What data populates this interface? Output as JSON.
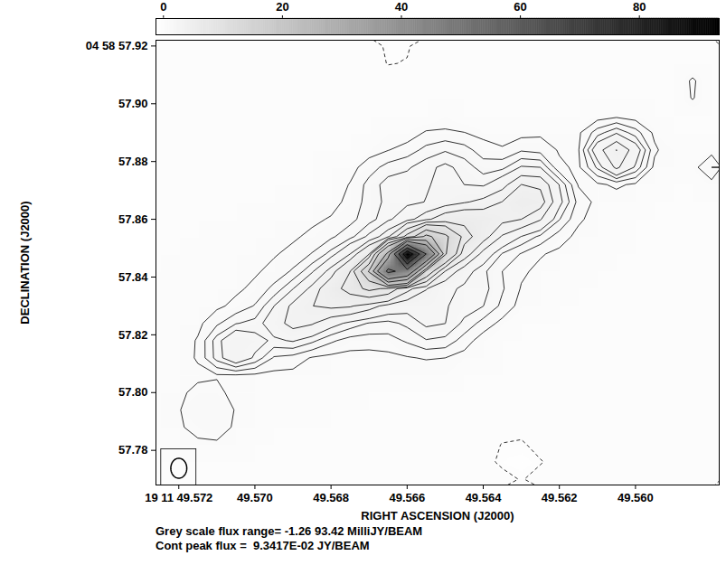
{
  "chart_data": {
    "type": "contour",
    "x_label": "RIGHT ASCENSION (J2000)",
    "y_label": "DECLINATION (J2000)",
    "xlim": [
      49.5726,
      49.5578
    ],
    "ylim": [
      57.768,
      57.922
    ],
    "xticks": [
      {
        "value": 49.572,
        "label": "19 11 49.572"
      },
      {
        "value": 49.57,
        "label": "49.570"
      },
      49.568,
      49.566,
      49.564,
      49.562,
      {
        "value": 49.56,
        "label": "49.560"
      }
    ],
    "yticks": [
      {
        "value": 57.92,
        "label": "04 58 57.92"
      },
      {
        "value": 57.9,
        "label": "57.90"
      },
      57.88,
      57.86,
      57.84,
      57.82,
      {
        "value": 57.8,
        "label": "57.80"
      },
      57.78
    ],
    "captions": [
      "Grey scale flux range= -1.26 93.42 MilliJY/BEAM",
      "Cont peak flux =  9.3417E-02 JY/BEAM"
    ],
    "colorbar": {
      "range": [
        -1.26,
        93.42
      ],
      "ticks": [
        0,
        20,
        40,
        60,
        80
      ]
    },
    "contour_levels": [
      0.5,
      1,
      1.5,
      2,
      3,
      4,
      6,
      8,
      12,
      16,
      24,
      32,
      48,
      64,
      80
    ],
    "negative_contour_levels": [
      -0.5
    ],
    "beam": {
      "ra": 49.572,
      "dec": 57.7738,
      "width": 0.00042,
      "height": 0.0069
    },
    "cells": {
      "ra": [
        49.5725,
        49.572,
        49.5715,
        49.571,
        49.5705,
        49.57,
        49.5695,
        49.569,
        49.5685,
        49.568,
        49.5675,
        49.567,
        49.5665,
        49.566,
        49.5655,
        49.565,
        49.5645,
        49.564,
        49.5635,
        49.563,
        49.5625,
        49.562,
        49.5615,
        49.561,
        49.5605,
        49.56,
        49.5595,
        49.559,
        49.5585,
        49.558
      ],
      "dec": [
        57.92,
        57.914,
        57.908,
        57.902,
        57.896,
        57.89,
        57.884,
        57.878,
        57.872,
        57.866,
        57.86,
        57.854,
        57.848,
        57.842,
        57.836,
        57.83,
        57.824,
        57.818,
        57.812,
        57.806,
        57.8,
        57.794,
        57.788,
        57.782,
        57.776,
        57.77
      ],
      "values": [
        [
          0,
          0,
          0,
          0,
          0,
          0,
          0,
          0,
          0,
          0,
          0,
          0,
          -0.7,
          -0.6,
          0,
          0,
          0,
          0,
          0,
          0,
          0,
          0,
          0,
          0,
          0,
          0,
          0,
          0,
          0,
          0
        ],
        [
          0,
          0,
          0,
          0,
          0,
          0,
          0,
          0,
          0,
          0,
          0,
          0,
          -0.55,
          -0.45,
          0,
          0,
          0,
          0,
          0,
          0,
          0,
          0,
          0,
          0,
          0,
          0,
          0,
          0,
          0,
          0
        ],
        [
          0,
          0,
          0,
          0,
          0,
          0,
          0,
          0,
          0,
          0,
          0,
          0,
          0,
          0,
          0,
          0,
          0,
          0,
          0,
          0,
          0,
          0,
          0,
          0,
          0,
          0,
          0,
          0,
          0.6,
          0
        ],
        [
          0,
          0,
          0,
          0,
          0,
          0,
          0,
          0,
          0,
          0,
          0,
          0,
          0,
          0,
          0,
          0,
          0,
          0,
          0,
          0,
          0,
          0,
          0,
          0,
          0,
          0,
          0,
          0,
          0.55,
          0
        ],
        [
          0,
          0,
          0,
          0,
          0,
          0,
          0,
          0,
          0,
          0,
          0,
          0,
          0,
          0,
          0,
          0.1,
          0,
          0,
          0,
          0,
          0,
          0,
          0,
          0.2,
          0.3,
          0.2,
          0,
          0,
          0,
          0
        ],
        [
          0,
          0,
          0,
          0,
          0,
          0,
          0,
          0,
          0,
          0,
          0,
          0,
          0.1,
          0.2,
          0.56,
          0.61,
          0.51,
          0.34,
          0.2,
          0.32,
          0.4,
          0.34,
          0.4,
          1.26,
          1.92,
          1.23,
          0.38,
          0,
          0,
          0
        ],
        [
          0,
          0,
          0,
          0,
          0,
          0,
          0,
          0,
          0,
          0,
          0,
          0.28,
          0.48,
          0.73,
          1.16,
          1.44,
          1.21,
          0.74,
          0.58,
          0.93,
          0.8,
          0.45,
          0.45,
          2.59,
          4.03,
          2.48,
          0.6,
          0.12,
          0,
          0.3
        ],
        [
          0,
          0,
          0,
          0,
          0,
          0,
          0,
          0,
          0,
          0.1,
          0.31,
          0.76,
          1.2,
          1.41,
          1.82,
          2.15,
          1.79,
          1.25,
          1.35,
          2.07,
          2.0,
          0.6,
          0.4,
          1.6,
          3.21,
          1.89,
          0.35,
          0.1,
          0.3,
          1.0
        ],
        [
          0,
          0,
          0,
          0,
          0,
          0,
          0,
          0,
          0,
          0.2,
          0.53,
          1.18,
          1.75,
          1.82,
          1.95,
          2.16,
          2.0,
          1.89,
          2.59,
          4.01,
          3.79,
          1.97,
          0.45,
          0.4,
          0.6,
          0.4,
          0.15,
          0,
          0,
          0.3
        ],
        [
          0,
          0,
          0,
          0,
          0,
          0,
          0,
          0.12,
          0.2,
          0.3,
          0.66,
          1.21,
          1.65,
          1.84,
          2.02,
          2.47,
          2.89,
          3.29,
          4.03,
          5.21,
          4.54,
          2.22,
          0.82,
          0.35,
          0.23,
          0.14,
          0,
          0,
          0,
          0
        ],
        [
          0,
          0,
          0,
          0,
          0,
          0.1,
          0.15,
          0.24,
          0.39,
          0.55,
          0.84,
          1.29,
          1.85,
          2.59,
          3.7,
          4.88,
          5.35,
          4.96,
          4.31,
          4.0,
          3.08,
          1.53,
          0.59,
          0.29,
          0.18,
          0,
          0,
          0,
          0,
          0
        ],
        [
          0,
          0,
          0,
          0.05,
          0.1,
          0.17,
          0.28,
          0.42,
          0.62,
          0.91,
          1.32,
          2.15,
          3.76,
          8.83,
          17.26,
          12.98,
          7.1,
          4.54,
          2.88,
          1.98,
          1.37,
          0.74,
          0.35,
          0.21,
          0.12,
          0,
          0,
          0,
          0,
          0
        ],
        [
          0,
          0,
          0.06,
          0.1,
          0.18,
          0.28,
          0.45,
          0.65,
          1.03,
          1.68,
          2.99,
          5.89,
          26.06,
          93.42,
          48,
          12.45,
          4.72,
          2.6,
          1.45,
          0.96,
          0.55,
          0.37,
          0.23,
          0.14,
          0,
          0,
          0,
          0,
          0,
          0
        ],
        [
          0,
          0.05,
          0.1,
          0.17,
          0.28,
          0.43,
          0.65,
          1.08,
          1.88,
          3.39,
          5.96,
          16.42,
          51.4,
          42.54,
          10.5,
          3.97,
          2.36,
          1.61,
          1.0,
          0.59,
          0.37,
          0.23,
          0.12,
          0,
          0,
          0,
          0,
          0,
          0,
          0
        ],
        [
          0.05,
          0.08,
          0.15,
          0.24,
          0.4,
          0.62,
          1.15,
          1.97,
          3.28,
          4.99,
          6.88,
          8.58,
          7.59,
          4.4,
          3.06,
          2.21,
          1.87,
          1.69,
          1.06,
          0.46,
          0.22,
          0.13,
          0,
          0,
          0,
          0,
          0,
          0,
          0,
          0
        ],
        [
          0.07,
          0.12,
          0.2,
          0.39,
          0.64,
          1.04,
          1.99,
          3.26,
          3.98,
          4.25,
          4.13,
          3.45,
          2.62,
          2.28,
          2.28,
          2.05,
          1.77,
          1.51,
          0.87,
          0.3,
          0.08,
          0,
          0,
          0,
          0,
          0,
          0,
          0,
          0,
          0
        ],
        [
          0.09,
          0.16,
          0.36,
          0.89,
          1.46,
          1.67,
          2.47,
          3.42,
          3.11,
          2.32,
          1.82,
          1.46,
          1.34,
          1.63,
          2.14,
          2.01,
          1.37,
          0.8,
          0.34,
          0,
          0,
          0,
          0,
          0,
          0,
          0,
          0,
          0,
          0,
          0
        ],
        [
          0.11,
          0.2,
          0.55,
          1.75,
          2.81,
          2.28,
          1.87,
          2.07,
          1.64,
          1.1,
          0.78,
          0.73,
          0.78,
          1.08,
          1.46,
          1.35,
          0.76,
          0.23,
          0,
          0,
          0,
          0,
          0,
          0,
          0,
          0,
          0,
          0,
          0,
          0
        ],
        [
          0.11,
          0.2,
          0.57,
          1.7,
          2.67,
          1.88,
          0.93,
          0.79,
          0.45,
          0.35,
          0.3,
          0.3,
          0.35,
          0.45,
          0.55,
          0.5,
          0.3,
          0.08,
          0,
          0,
          0,
          0,
          0,
          0,
          0,
          0,
          0,
          0,
          0,
          0
        ],
        [
          0.11,
          0.25,
          0.35,
          0.45,
          0.45,
          0.4,
          0.35,
          0.34,
          0.32,
          0.29,
          0.25,
          0.2,
          0.15,
          0.1,
          0.1,
          0.1,
          0,
          0,
          0,
          0,
          0,
          0,
          0,
          0,
          0,
          0,
          0,
          0,
          0,
          0
        ],
        [
          0.12,
          0.35,
          0.7,
          0.65,
          0.3,
          0.29,
          0.19,
          0.18,
          0.17,
          0.14,
          0.11,
          0,
          0,
          0,
          0,
          0,
          0,
          0,
          0,
          0,
          0,
          0,
          0,
          0,
          0,
          0,
          0,
          0,
          0,
          0
        ],
        [
          0.14,
          0.45,
          0.95,
          0.95,
          0.45,
          0.17,
          0.13,
          0.12,
          0.1,
          0,
          0,
          0,
          0,
          0,
          0,
          0,
          0,
          0,
          0,
          0,
          0,
          0,
          0,
          0,
          0,
          0,
          0,
          0,
          0,
          0
        ],
        [
          0.1,
          0.4,
          0.75,
          0.8,
          0.4,
          0.08,
          0,
          0,
          0,
          0,
          0,
          0,
          0,
          0,
          0,
          0,
          0,
          0,
          0,
          0,
          0,
          0,
          0,
          0,
          0,
          0,
          0,
          0,
          0,
          0
        ],
        [
          0,
          0.2,
          0.35,
          0.4,
          0.15,
          0,
          0,
          0,
          0,
          0,
          0,
          0,
          0,
          0,
          0,
          0,
          0,
          0,
          -0.55,
          -0.7,
          0,
          0,
          0,
          0,
          0,
          0,
          0,
          0,
          0,
          0
        ],
        [
          0,
          0,
          0,
          0,
          0,
          0,
          0,
          0,
          0,
          0,
          0,
          0,
          0,
          0,
          0,
          0,
          0,
          0,
          -0.8,
          -1.26,
          -0.6,
          0,
          0,
          0,
          0,
          0,
          0,
          0,
          0,
          0
        ],
        [
          0,
          0,
          0,
          0,
          0,
          0,
          0,
          0,
          0,
          0,
          0,
          0,
          0,
          0,
          0,
          0,
          0,
          0,
          0,
          -0.6,
          0,
          0,
          0,
          0,
          0,
          0,
          0,
          0,
          0,
          0
        ]
      ]
    }
  }
}
